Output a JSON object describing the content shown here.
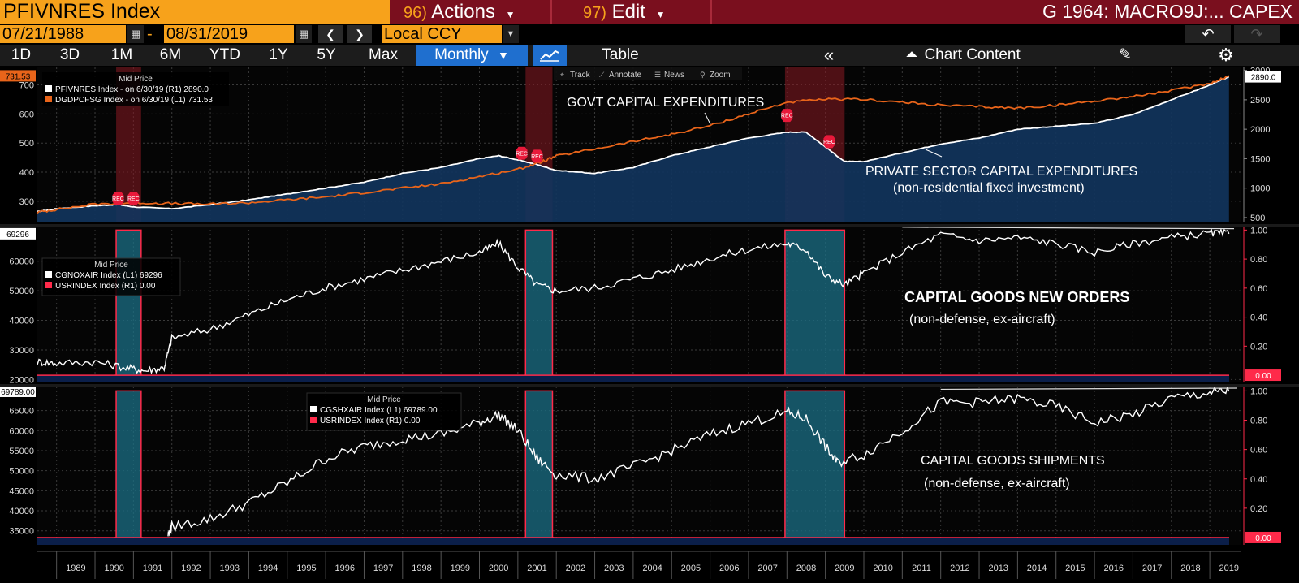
{
  "header": {
    "ticker": "PFIVNRES Index",
    "actions_num": "96)",
    "actions_label": "Actions",
    "edit_num": "97)",
    "edit_label": "Edit",
    "graph_title": "G 1964: MACRO9J:... CAPEX"
  },
  "toolbar": {
    "start_date": "07/21/1988",
    "date_sep": "-",
    "end_date": "08/31/2019",
    "currency": "Local CCY"
  },
  "periods": [
    "1D",
    "3D",
    "1M",
    "6M",
    "YTD",
    "1Y",
    "5Y",
    "Max"
  ],
  "frequency": "Monthly",
  "table_label": "Table",
  "chart_content_label": "Chart Content",
  "overlay_tools": [
    "Track",
    "Annotate",
    "News",
    "Zoom"
  ],
  "colors": {
    "orange": "#f7a21b",
    "brand_bar": "#7a0f1e",
    "accent_blue": "#1f6fcf",
    "series_white": "#ffffff",
    "series_orange": "#e8641a",
    "recession_red": "#ff2a4a",
    "area_fill": "#12355e"
  },
  "years": [
    "1989",
    "1990",
    "1991",
    "1992",
    "1993",
    "1994",
    "1995",
    "1996",
    "1997",
    "1998",
    "1999",
    "2000",
    "2001",
    "2002",
    "2003",
    "2004",
    "2005",
    "2006",
    "2007",
    "2008",
    "2009",
    "2010",
    "2011",
    "2012",
    "2013",
    "2014",
    "2015",
    "2016",
    "2017",
    "2018",
    "2019"
  ],
  "recessions": [
    [
      1990.55,
      1991.2
    ],
    [
      2001.2,
      2001.9
    ],
    [
      2007.95,
      2009.5
    ]
  ],
  "chart_data": [
    {
      "type": "area",
      "legend_title": "Mid Price",
      "series": [
        {
          "name": "PFIVNRES Index - on 6/30/19 (R1) 2890.0",
          "axis": "right",
          "x": [
            1988.5,
            1989,
            1990,
            1990.6,
            1991,
            1992,
            1993,
            1994,
            1995,
            1996,
            1997,
            1998,
            1999,
            2000,
            2000.5,
            2001,
            2001.5,
            2002,
            2003,
            2004,
            2005,
            2006,
            2007,
            2008,
            2008.5,
            2009,
            2009.5,
            2010,
            2011,
            2012,
            2013,
            2014,
            2015,
            2016,
            2017,
            2018,
            2019,
            2019.5
          ],
          "values": [
            600,
            650,
            700,
            720,
            680,
            650,
            720,
            800,
            900,
            1000,
            1100,
            1250,
            1350,
            1500,
            1550,
            1480,
            1400,
            1300,
            1250,
            1350,
            1550,
            1700,
            1850,
            1950,
            1950,
            1700,
            1450,
            1450,
            1600,
            1750,
            1850,
            2000,
            2050,
            2100,
            2250,
            2500,
            2750,
            2890
          ]
        },
        {
          "name": "DGDPCFSG Index - on 6/30/19 (L1) 731.53",
          "axis": "left",
          "x": [
            1988.5,
            1989,
            1990,
            1991,
            1992,
            1993,
            1994,
            1995,
            1996,
            1997,
            1998,
            1999,
            2000,
            2001,
            2001.5,
            2002,
            2003,
            2004,
            2005,
            2006,
            2007,
            2008,
            2009,
            2010,
            2011,
            2012,
            2013,
            2014,
            2015,
            2016,
            2017,
            2018,
            2019,
            2019.5
          ],
          "values": [
            262,
            272,
            290,
            295,
            292,
            290,
            295,
            305,
            315,
            330,
            345,
            360,
            385,
            410,
            430,
            455,
            480,
            505,
            530,
            560,
            600,
            640,
            650,
            650,
            640,
            630,
            625,
            620,
            630,
            645,
            660,
            680,
            705,
            731
          ]
        }
      ],
      "left_axis": {
        "ticks": [
          300,
          400,
          500,
          600,
          700
        ],
        "range": [
          230,
          760
        ]
      },
      "right_axis": {
        "ticks": [
          500,
          1000,
          1500,
          2000,
          2500,
          3000
        ],
        "range": [
          430,
          3050
        ]
      },
      "left_last_value": "731.53",
      "right_last_value": "2890.0",
      "annotations": [
        "GOVT CAPITAL EXPENDITURES",
        "PRIVATE SECTOR CAPITAL EXPENDITURES",
        "(non-residential fixed investment)"
      ],
      "markers": "REC"
    },
    {
      "type": "line",
      "legend_title": "Mid Price",
      "series": [
        {
          "name": "CGNOXAIR Index (L1) 69296",
          "axis": "left",
          "x": [
            1988.5,
            1989,
            1990,
            1990.8,
            1991.3,
            1991.8,
            1992,
            1993,
            1994,
            1995,
            1996,
            1997,
            1998,
            1999,
            2000,
            2000.5,
            2001,
            2001.5,
            2002,
            2003,
            2004,
            2005,
            2006,
            2007,
            2008,
            2008.5,
            2009,
            2009.5,
            2010,
            2011,
            2012,
            2013,
            2014,
            2015,
            2016,
            2017,
            2018,
            2019,
            2019.5
          ],
          "values": [
            26000,
            25500,
            26000,
            24000,
            23000,
            24000,
            34000,
            37000,
            42000,
            47000,
            51000,
            54000,
            57000,
            60000,
            63000,
            66000,
            58000,
            52000,
            50000,
            51000,
            54000,
            57000,
            61000,
            64000,
            66000,
            64000,
            55000,
            52000,
            56000,
            63000,
            69000,
            67000,
            68000,
            66000,
            63000,
            66000,
            68000,
            69500,
            69296
          ]
        },
        {
          "name": "USRINDEX Index (R1) 0.00",
          "axis": "right"
        }
      ],
      "left_axis": {
        "ticks": [
          20000,
          30000,
          40000,
          50000,
          60000
        ],
        "range": [
          19000,
          72000
        ]
      },
      "right_axis": {
        "ticks": [
          0.2,
          0.4,
          0.6,
          0.8,
          1.0
        ],
        "range": [
          -0.05,
          1.03
        ]
      },
      "left_last_value": "69296",
      "right_last_value": "0.00",
      "annotations": [
        "CAPITAL GOODS NEW ORDERS",
        "(non-defense, ex-aircraft)"
      ]
    },
    {
      "type": "line",
      "legend_title": "Mid Price",
      "series": [
        {
          "name": "CGSHXAIR Index (L1) 69789.00",
          "axis": "left",
          "x": [
            1991.9,
            1992,
            1993,
            1994,
            1995,
            1996,
            1997,
            1998,
            1999,
            2000,
            2000.5,
            2001,
            2001.5,
            2002,
            2003,
            2004,
            2005,
            2006,
            2007,
            2008,
            2008.5,
            2009,
            2009.3,
            2010,
            2011,
            2012,
            2013,
            2014,
            2015,
            2016,
            2017,
            2018,
            2019,
            2019.5
          ],
          "values": [
            34000,
            36000,
            38000,
            42000,
            47000,
            53000,
            56000,
            58000,
            59000,
            62000,
            64000,
            60000,
            53000,
            49000,
            48000,
            51000,
            55000,
            59000,
            62000,
            64500,
            63000,
            56000,
            52000,
            54000,
            60000,
            67000,
            67000,
            68000,
            66000,
            62000,
            64000,
            68000,
            69500,
            69789
          ]
        },
        {
          "name": "USRINDEX Index (R1) 0.00",
          "axis": "right"
        }
      ],
      "left_axis": {
        "ticks": [
          35000,
          40000,
          45000,
          50000,
          55000,
          60000,
          65000
        ],
        "range": [
          31500,
          71000
        ]
      },
      "right_axis": {
        "ticks": [
          0.2,
          0.4,
          0.6,
          0.8,
          1.0
        ],
        "range": [
          -0.05,
          1.03
        ]
      },
      "left_last_value": "69789.00",
      "right_last_value": "0.00",
      "annotations": [
        "CAPITAL GOODS SHIPMENTS",
        "(non-defense, ex-aircraft)"
      ]
    }
  ]
}
